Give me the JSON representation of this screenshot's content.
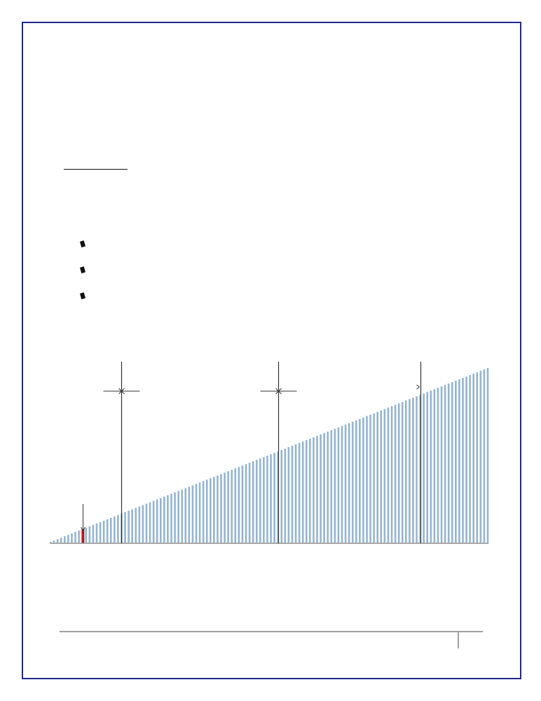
{
  "document": {
    "bullets": [
      {
        "text": ""
      },
      {
        "text": ""
      },
      {
        "text": ""
      }
    ]
  },
  "chart_data": {
    "type": "bar",
    "bar_count": 124,
    "baseline_color": "#a9a9a9",
    "bar_color": "#94b4d2",
    "highlight_color": "#e0151c",
    "highlight_bar_index": 9,
    "markers": [
      {
        "bar_index": 9,
        "style": "arrow"
      },
      {
        "bar_index": 20,
        "style": "crosshair"
      },
      {
        "bar_index": 64,
        "style": "crosshair"
      },
      {
        "bar_index": 104,
        "style": "tick"
      }
    ]
  }
}
